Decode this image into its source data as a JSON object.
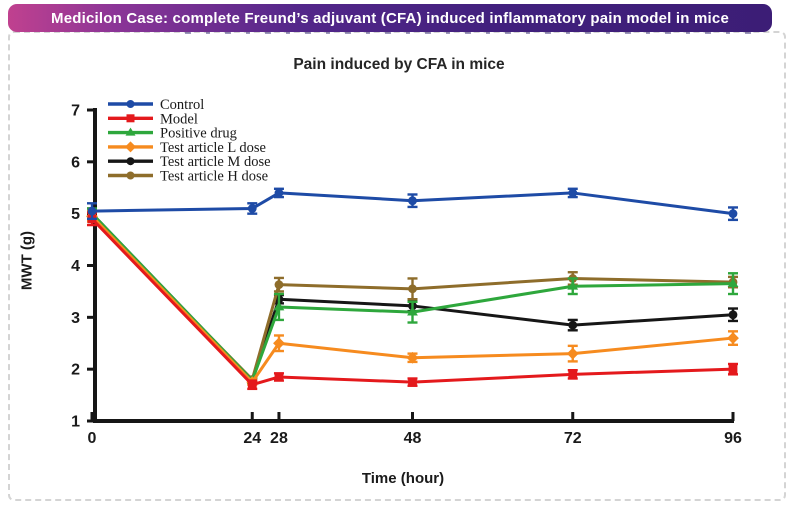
{
  "banner": {
    "text": "Medicilon Case: complete Freund’s adjuvant (CFA) induced inflammatory pain model in mice",
    "gradient_left": "#c0418f",
    "gradient_right": "#3c1d76",
    "text_color": "#ffffff"
  },
  "chart_data": {
    "type": "line",
    "title": "Pain induced by CFA in mice",
    "xlabel": "Time (hour)",
    "ylabel": "MWT (g)",
    "x": [
      0,
      24,
      28,
      48,
      72,
      96
    ],
    "xticks": [
      0,
      24,
      28,
      48,
      72,
      96
    ],
    "yticks": [
      1,
      2,
      3,
      4,
      5,
      6,
      7
    ],
    "xlim": [
      0,
      96
    ],
    "ylim": [
      1,
      7
    ],
    "grid": false,
    "legend_position": "top-left",
    "error_bars": true,
    "axis_color": "#161616",
    "series": [
      {
        "name": "Control",
        "color": "#1e4ba6",
        "marker": "circle",
        "values": [
          5.05,
          5.1,
          5.4,
          5.25,
          5.4,
          5.0
        ],
        "errors": [
          0.15,
          0.1,
          0.08,
          0.12,
          0.08,
          0.12
        ]
      },
      {
        "name": "Model",
        "color": "#e4191c",
        "marker": "square",
        "values": [
          4.9,
          1.7,
          1.85,
          1.75,
          1.9,
          2.0
        ],
        "errors": [
          0.12,
          0.08,
          0.07,
          0.07,
          0.08,
          0.1
        ]
      },
      {
        "name": "Positive drug",
        "color": "#2ea73c",
        "marker": "triangle",
        "values": [
          5.0,
          1.78,
          3.2,
          3.1,
          3.6,
          3.65
        ],
        "errors": [
          0.1,
          0.05,
          0.25,
          0.2,
          0.15,
          0.2
        ]
      },
      {
        "name": "Test article L dose",
        "color": "#f68b1f",
        "marker": "diamond",
        "values": [
          4.95,
          1.75,
          2.5,
          2.22,
          2.3,
          2.6
        ],
        "errors": [
          0.1,
          0.05,
          0.15,
          0.08,
          0.15,
          0.13
        ]
      },
      {
        "name": "Test article M dose",
        "color": "#161616",
        "marker": "circle",
        "values": [
          5.0,
          1.78,
          3.35,
          3.22,
          2.85,
          3.05
        ],
        "errors": [
          0.1,
          0.05,
          0.08,
          0.1,
          0.1,
          0.12
        ]
      },
      {
        "name": "Test article H dose",
        "color": "#8e6d2b",
        "marker": "circle",
        "values": [
          4.95,
          1.8,
          3.63,
          3.55,
          3.75,
          3.68
        ],
        "errors": [
          0.1,
          0.05,
          0.13,
          0.2,
          0.12,
          0.1
        ]
      }
    ]
  }
}
